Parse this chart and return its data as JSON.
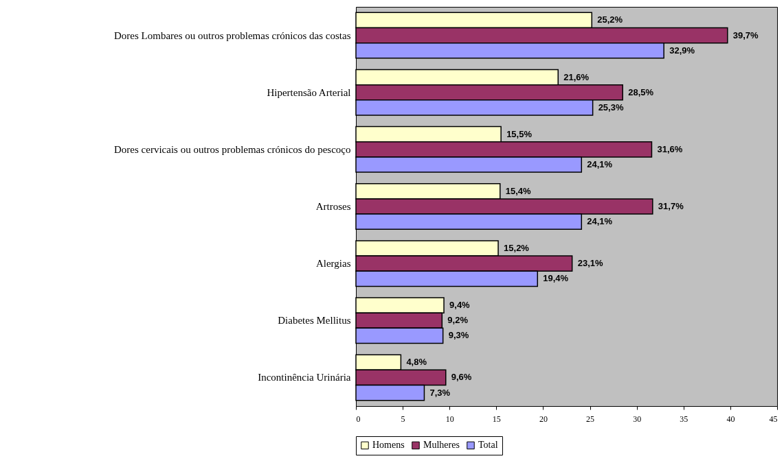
{
  "chart_data": {
    "type": "bar",
    "orientation": "horizontal",
    "categories": [
      "Dores Lombares ou outros problemas crónicos das costas",
      "Hipertensão Arterial",
      "Dores cervicais ou outros problemas crónicos do pescoço",
      "Artroses",
      "Alergias",
      "Diabetes Mellitus",
      "Incontinência Urinária"
    ],
    "series": [
      {
        "name": "Homens",
        "color": "#ffffcc",
        "values": [
          25.2,
          21.6,
          15.5,
          15.4,
          15.2,
          9.4,
          4.8
        ],
        "value_labels": [
          "25,2%",
          "21,6%",
          "15,5%",
          "15,4%",
          "15,2%",
          "9,4%",
          "4,8%"
        ]
      },
      {
        "name": "Mulheres",
        "color": "#993366",
        "values": [
          39.7,
          28.5,
          31.6,
          31.7,
          23.1,
          9.2,
          9.6
        ],
        "value_labels": [
          "39,7%",
          "28,5%",
          "31,6%",
          "31,7%",
          "23,1%",
          "9,2%",
          "9,6%"
        ]
      },
      {
        "name": "Total",
        "color": "#9999ff",
        "values": [
          32.9,
          25.3,
          24.1,
          24.1,
          19.4,
          9.3,
          7.3
        ],
        "value_labels": [
          "32,9%",
          "25,3%",
          "24,1%",
          "24,1%",
          "19,4%",
          "9,3%",
          "7,3%"
        ]
      }
    ],
    "xlim": [
      0,
      45
    ],
    "xticks": [
      0,
      5,
      10,
      15,
      20,
      25,
      30,
      35,
      40,
      45
    ],
    "grid": false,
    "legend": "bottom"
  }
}
